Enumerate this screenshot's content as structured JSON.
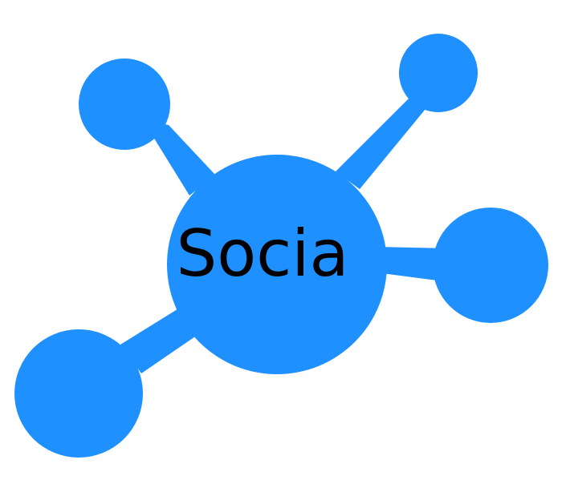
{
  "logo": {
    "text": "Socia",
    "icon": "network-nodes-icon",
    "colors": {
      "node": "#1E90FF",
      "text": "#000000",
      "background": "#FFFFFF"
    }
  }
}
